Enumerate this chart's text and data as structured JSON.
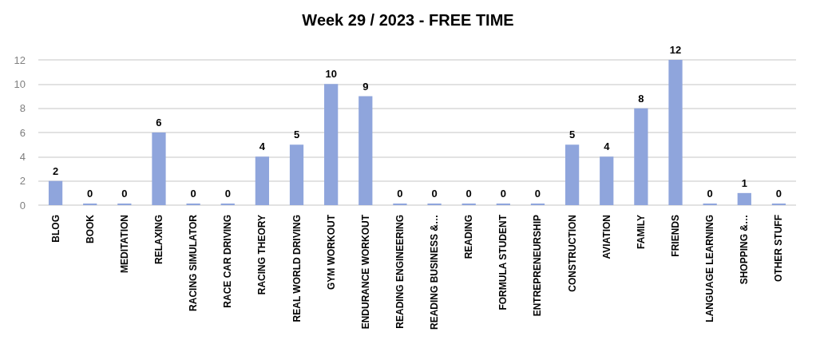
{
  "chart_data": {
    "type": "bar",
    "title": "Week 29 / 2023 - FREE TIME",
    "categories": [
      "BLOG",
      "BOOK",
      "MEDITATION",
      "RELAXING",
      "RACING SIMULATOR",
      "RACE CAR DRIVING",
      "RACING THEORY",
      "REAL WORLD DRIVING",
      "GYM WORKOUT",
      "ENDURANCE WORKOUT",
      "READING ENGINEERING",
      "READING BUSINESS &…",
      "READING",
      "FORMULA STUDENT",
      "ENTREPRENEURSHIP",
      "CONSTRUCTION",
      "AVIATION",
      "FAMILY",
      "FRIENDS",
      "LANGUAGE LEARNING",
      "SHOPPING &…",
      "OTHER STUFF"
    ],
    "values": [
      2,
      0,
      0,
      6,
      0,
      0,
      4,
      5,
      10,
      9,
      0,
      0,
      0,
      0,
      0,
      5,
      4,
      8,
      12,
      0,
      1,
      0
    ],
    "color": "#8fa5dc",
    "ylim": [
      0,
      12
    ],
    "yticks": [
      0,
      2,
      4,
      6,
      8,
      10,
      12
    ],
    "grid": "y",
    "data_labels": true
  }
}
